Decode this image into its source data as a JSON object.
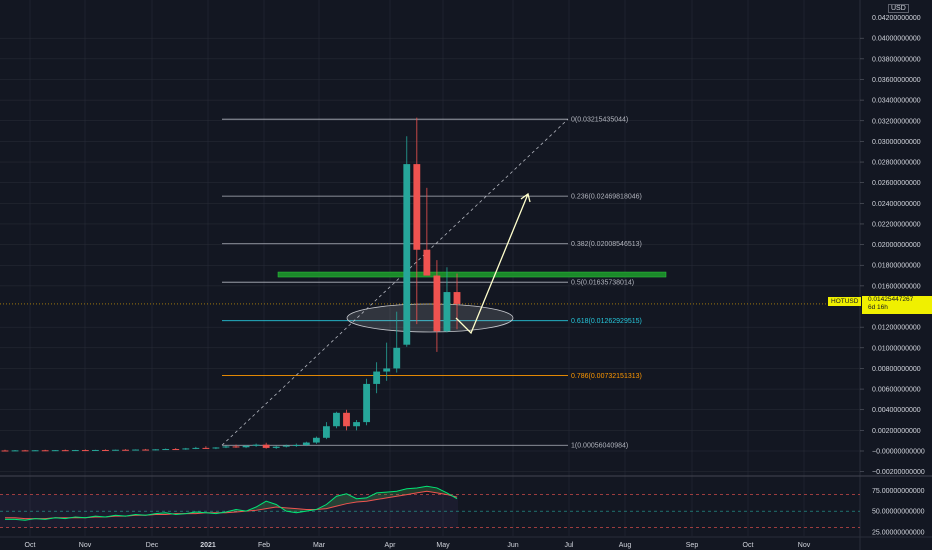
{
  "header": {
    "currency": "USD"
  },
  "symbol": {
    "ticker": "HOTUSD",
    "last_price": "0.01425447267",
    "countdown": "6d 16h"
  },
  "colors": {
    "background": "#131722",
    "up": "#26a69a",
    "down": "#ef5350",
    "grid": "#2a2e39",
    "fib_main": "#b2b5be",
    "fib_618": "#26c6da",
    "fib_786": "#ff9800",
    "resistance_zone": "#1b8a2a",
    "ellipse": "#c7c9cf",
    "rsi": "#00e676",
    "rsi_ma": "#ef5350",
    "price_tag": "#f0f000"
  },
  "chart_data": {
    "type": "candlestick",
    "title": "",
    "xlabel": "",
    "ylabel": "",
    "ylim": [
      -0.002,
      0.0425
    ],
    "x_ticks": [
      "Oct",
      "Nov",
      "Dec",
      "2021",
      "Feb",
      "Mar",
      "Apr",
      "May",
      "Jun",
      "Jul",
      "Aug",
      "Sep",
      "Oct",
      "Nov"
    ],
    "y_ticks": [
      "0.04000000000",
      "0.03800000000",
      "0.03600000000",
      "0.03400000000",
      "0.03200000000",
      "0.03000000000",
      "0.02800000000",
      "0.02600000000",
      "0.02400000000",
      "0.02200000000",
      "0.02000000000",
      "0.01800000000",
      "0.01600000000",
      "0.01200000000",
      "0.01000000000",
      "0.00800000000",
      "0.00600000000",
      "0.00400000000",
      "0.00200000000",
      "−0.00000000000",
      "−0.00200000000"
    ],
    "y_ticks_values": [
      0.04,
      0.038,
      0.036,
      0.034,
      0.032,
      0.03,
      0.028,
      0.026,
      0.024,
      0.022,
      0.02,
      0.018,
      0.016,
      0.012,
      0.01,
      0.008,
      0.006,
      0.004,
      0.002,
      0.0,
      -0.002
    ],
    "y_top_partial": "0.04200000000",
    "candles": [
      {
        "o": 5e-05,
        "h": 0.00012,
        "l": 0.0,
        "c": 3e-05
      },
      {
        "o": 3e-05,
        "h": 0.0001,
        "l": 0.0,
        "c": 6e-05
      },
      {
        "o": 6e-05,
        "h": 0.00011,
        "l": 1e-05,
        "c": 4e-05
      },
      {
        "o": 4e-05,
        "h": 9e-05,
        "l": 0.0,
        "c": 7e-05
      },
      {
        "o": 7e-05,
        "h": 0.00012,
        "l": 2e-05,
        "c": 5e-05
      },
      {
        "o": 5e-05,
        "h": 0.0001,
        "l": 1e-05,
        "c": 8e-05
      },
      {
        "o": 8e-05,
        "h": 0.00014,
        "l": 3e-05,
        "c": 6e-05
      },
      {
        "o": 6e-05,
        "h": 0.00011,
        "l": 2e-05,
        "c": 9e-05
      },
      {
        "o": 9e-05,
        "h": 0.00015,
        "l": 4e-05,
        "c": 7e-05
      },
      {
        "o": 7e-05,
        "h": 0.00012,
        "l": 3e-05,
        "c": 0.0001
      },
      {
        "o": 0.0001,
        "h": 0.00016,
        "l": 5e-05,
        "c": 8e-05
      },
      {
        "o": 8e-05,
        "h": 0.00013,
        "l": 4e-05,
        "c": 0.00012
      },
      {
        "o": 0.00012,
        "h": 0.00018,
        "l": 6e-05,
        "c": 0.0001
      },
      {
        "o": 0.0001,
        "h": 0.00016,
        "l": 5e-05,
        "c": 0.00014
      },
      {
        "o": 0.00014,
        "h": 0.0002,
        "l": 8e-05,
        "c": 0.00012
      },
      {
        "o": 0.00012,
        "h": 0.00018,
        "l": 6e-05,
        "c": 0.00016
      },
      {
        "o": 0.00016,
        "h": 0.00024,
        "l": 0.0001,
        "c": 0.00019
      },
      {
        "o": 0.00019,
        "h": 0.00028,
        "l": 0.00012,
        "c": 0.00015
      },
      {
        "o": 0.00015,
        "h": 0.0003,
        "l": 0.00011,
        "c": 0.00025
      },
      {
        "o": 0.00025,
        "h": 0.0004,
        "l": 0.00018,
        "c": 0.0003
      },
      {
        "o": 0.0003,
        "h": 0.00046,
        "l": 0.00022,
        "c": 0.00026
      },
      {
        "o": 0.00026,
        "h": 0.00038,
        "l": 0.00018,
        "c": 0.00034
      },
      {
        "o": 0.00034,
        "h": 0.00052,
        "l": 0.00028,
        "c": 0.00044
      },
      {
        "o": 0.00044,
        "h": 0.00062,
        "l": 0.0003,
        "c": 0.00036
      },
      {
        "o": 0.00036,
        "h": 0.00058,
        "l": 0.00028,
        "c": 0.0005
      },
      {
        "o": 0.0005,
        "h": 0.00072,
        "l": 0.0004,
        "c": 0.00061
      },
      {
        "o": 0.00061,
        "h": 0.0008,
        "l": 0.00022,
        "c": 0.0003
      },
      {
        "o": 0.0003,
        "h": 0.0005,
        "l": 0.0002,
        "c": 0.00042
      },
      {
        "o": 0.00042,
        "h": 0.00062,
        "l": 0.00034,
        "c": 0.00052
      },
      {
        "o": 0.00052,
        "h": 0.00072,
        "l": 0.0004,
        "c": 0.00058
      },
      {
        "o": 0.00058,
        "h": 0.0009,
        "l": 0.00048,
        "c": 0.00082
      },
      {
        "o": 0.00082,
        "h": 0.0014,
        "l": 0.0007,
        "c": 0.00128
      },
      {
        "o": 0.00128,
        "h": 0.0028,
        "l": 0.00115,
        "c": 0.0024
      },
      {
        "o": 0.0024,
        "h": 0.0038,
        "l": 0.0022,
        "c": 0.0037
      },
      {
        "o": 0.0037,
        "h": 0.004,
        "l": 0.002,
        "c": 0.0024
      },
      {
        "o": 0.0024,
        "h": 0.003,
        "l": 0.002,
        "c": 0.0028
      },
      {
        "o": 0.0028,
        "h": 0.007,
        "l": 0.0025,
        "c": 0.0065
      },
      {
        "o": 0.0065,
        "h": 0.0086,
        "l": 0.0056,
        "c": 0.0077
      },
      {
        "o": 0.0077,
        "h": 0.0105,
        "l": 0.0068,
        "c": 0.008
      },
      {
        "o": 0.008,
        "h": 0.0135,
        "l": 0.0076,
        "c": 0.01
      },
      {
        "o": 0.0103,
        "h": 0.0305,
        "l": 0.0101,
        "c": 0.0278
      },
      {
        "o": 0.0278,
        "h": 0.0323,
        "l": 0.0123,
        "c": 0.0195
      },
      {
        "o": 0.0195,
        "h": 0.0255,
        "l": 0.0172,
        "c": 0.017
      },
      {
        "o": 0.017,
        "h": 0.0185,
        "l": 0.0096,
        "c": 0.0116
      },
      {
        "o": 0.0116,
        "h": 0.0178,
        "l": 0.0115,
        "c": 0.0154
      },
      {
        "o": 0.0154,
        "h": 0.0172,
        "l": 0.0118,
        "c": 0.01425
      }
    ],
    "fib_levels": [
      {
        "label": "0(0.03215435044)",
        "value": 0.03215435044
      },
      {
        "label": "0.236(0.02469818046)",
        "value": 0.02469818046
      },
      {
        "label": "0.382(0.02008546513)",
        "value": 0.02008546513
      },
      {
        "label": "0.5(0.01635738014)",
        "value": 0.01635738014
      },
      {
        "label": "0.618(0.01262929515)",
        "value": 0.01262929515
      },
      {
        "label": "0.786(0.00732151313)",
        "value": 0.00732151313
      },
      {
        "label": "1(0.00056040984)",
        "value": 0.00056040984
      }
    ],
    "last_price": 0.01425447267,
    "resistance_zone": 0.0171,
    "rsi_panel": {
      "y_ticks": [
        "75.00000000000",
        "50.00000000000",
        "25.00000000000"
      ],
      "y_ticks_values": [
        75,
        50,
        25
      ],
      "ylim": [
        20,
        90
      ],
      "rsi": [
        40,
        40,
        39,
        41,
        40,
        42,
        41,
        43,
        42,
        44,
        43,
        45,
        44,
        46,
        45,
        47,
        48,
        46,
        47,
        49,
        48,
        47,
        49,
        52,
        50,
        55,
        62,
        58,
        50,
        48,
        50,
        52,
        58,
        68,
        71,
        65,
        66,
        72,
        73,
        74,
        77,
        78,
        80,
        78,
        72,
        65
      ],
      "ma": [
        42,
        42,
        41,
        41,
        41,
        42,
        42,
        42,
        42,
        43,
        43,
        44,
        44,
        45,
        45,
        46,
        46,
        47,
        47,
        47,
        48,
        48,
        48,
        49,
        50,
        51,
        53,
        55,
        54,
        53,
        52,
        52,
        53,
        56,
        59,
        61,
        62,
        64,
        66,
        68,
        70,
        72,
        74,
        72,
        70,
        67
      ]
    },
    "grid": true
  }
}
